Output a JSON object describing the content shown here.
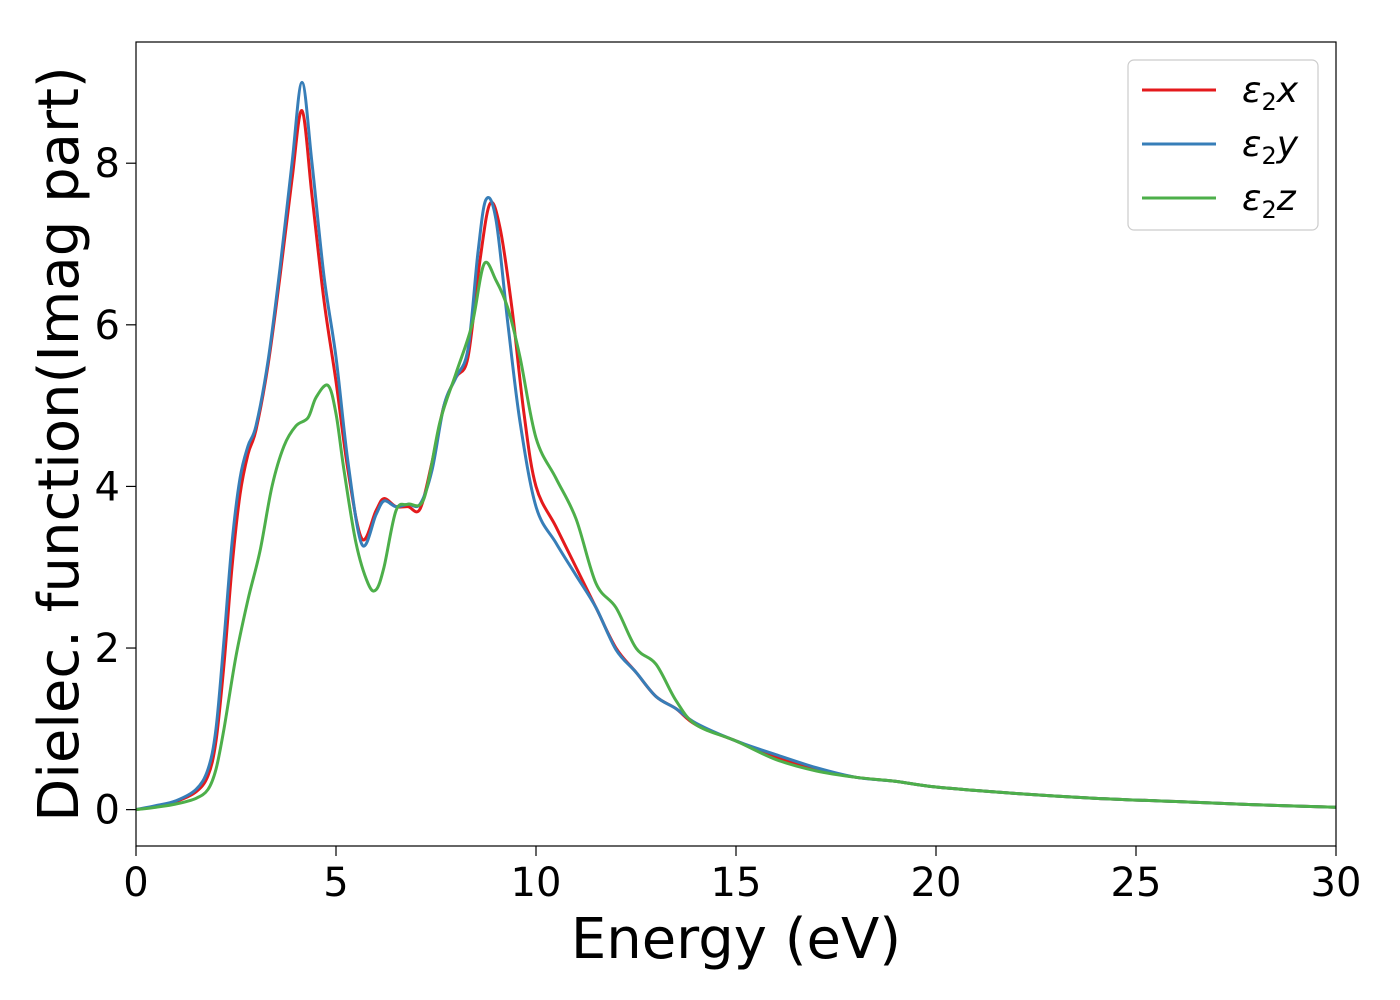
{
  "chart_data": {
    "type": "line",
    "xlabel": "Energy (eV)",
    "ylabel": "Dielec. function(Imag part)",
    "xlim": [
      0,
      30
    ],
    "ylim": [
      -0.45,
      9.5
    ],
    "xticks": [
      0,
      5,
      10,
      15,
      20,
      25,
      30
    ],
    "yticks": [
      0,
      2,
      4,
      6,
      8
    ],
    "xtick_labels": [
      "0",
      "5",
      "10",
      "15",
      "20",
      "25",
      "30"
    ],
    "ytick_labels": [
      "0",
      "2",
      "4",
      "6",
      "8"
    ],
    "grid": false,
    "legend_position": "top-right",
    "series": [
      {
        "name_prefix": "ε",
        "name_sub": "2",
        "name_suffix": "x",
        "color": "#e41a1c",
        "x": [
          0,
          0.5,
          1.0,
          1.5,
          1.8,
          2.0,
          2.2,
          2.4,
          2.6,
          2.8,
          3.0,
          3.3,
          3.6,
          3.9,
          4.15,
          4.4,
          4.7,
          5.0,
          5.3,
          5.65,
          6.0,
          6.2,
          6.5,
          6.8,
          7.1,
          7.4,
          7.7,
          8.0,
          8.3,
          8.6,
          8.85,
          9.1,
          9.4,
          9.7,
          10.0,
          10.5,
          11.0,
          11.5,
          12.0,
          12.5,
          13.0,
          13.5,
          14.0,
          15.0,
          16.0,
          17.0,
          18.0,
          19.0,
          20.0,
          22.0,
          24.0,
          26.0,
          28.0,
          30.0
        ],
        "values": [
          0.0,
          0.04,
          0.1,
          0.22,
          0.42,
          0.85,
          1.8,
          3.0,
          3.9,
          4.4,
          4.7,
          5.5,
          6.6,
          7.8,
          8.65,
          7.6,
          6.3,
          5.3,
          4.2,
          3.35,
          3.7,
          3.85,
          3.75,
          3.75,
          3.72,
          4.3,
          5.0,
          5.35,
          5.6,
          6.8,
          7.5,
          7.2,
          6.2,
          4.9,
          4.0,
          3.5,
          3.0,
          2.5,
          2.0,
          1.7,
          1.4,
          1.25,
          1.05,
          0.85,
          0.65,
          0.5,
          0.4,
          0.35,
          0.28,
          0.2,
          0.14,
          0.1,
          0.06,
          0.03
        ]
      },
      {
        "name_prefix": "ε",
        "name_sub": "2",
        "name_suffix": "y",
        "color": "#377eb8",
        "x": [
          0,
          0.5,
          1.0,
          1.5,
          1.8,
          2.0,
          2.2,
          2.4,
          2.6,
          2.8,
          3.0,
          3.3,
          3.6,
          3.9,
          4.15,
          4.4,
          4.7,
          5.0,
          5.3,
          5.65,
          6.0,
          6.2,
          6.5,
          6.8,
          7.1,
          7.4,
          7.7,
          8.0,
          8.3,
          8.55,
          8.75,
          9.0,
          9.3,
          9.6,
          10.0,
          10.5,
          11.0,
          11.5,
          12.0,
          12.5,
          13.0,
          13.5,
          14.0,
          15.0,
          16.0,
          17.0,
          18.0,
          19.0,
          20.0,
          22.0,
          24.0,
          26.0,
          28.0,
          30.0
        ],
        "values": [
          0.0,
          0.05,
          0.11,
          0.25,
          0.5,
          1.0,
          2.1,
          3.3,
          4.1,
          4.5,
          4.75,
          5.55,
          6.7,
          8.0,
          9.0,
          8.0,
          6.6,
          5.6,
          4.3,
          3.28,
          3.65,
          3.82,
          3.75,
          3.78,
          3.78,
          4.2,
          5.0,
          5.35,
          5.7,
          6.9,
          7.55,
          7.3,
          6.0,
          4.8,
          3.75,
          3.3,
          2.9,
          2.5,
          1.98,
          1.7,
          1.4,
          1.25,
          1.07,
          0.85,
          0.68,
          0.52,
          0.4,
          0.35,
          0.28,
          0.2,
          0.14,
          0.1,
          0.06,
          0.03
        ]
      },
      {
        "name_prefix": "ε",
        "name_sub": "2",
        "name_suffix": "z",
        "color": "#4daf4a",
        "x": [
          0,
          0.5,
          1.0,
          1.5,
          1.8,
          2.0,
          2.2,
          2.5,
          2.8,
          3.1,
          3.4,
          3.7,
          4.0,
          4.3,
          4.5,
          4.8,
          5.0,
          5.2,
          5.5,
          5.8,
          6.0,
          6.2,
          6.5,
          6.8,
          7.2,
          7.6,
          8.0,
          8.4,
          8.7,
          9.0,
          9.3,
          9.6,
          10.0,
          10.5,
          11.0,
          11.5,
          12.0,
          12.5,
          13.0,
          13.5,
          14.0,
          15.0,
          16.0,
          17.0,
          18.0,
          19.0,
          20.0,
          22.0,
          24.0,
          26.0,
          28.0,
          30.0
        ],
        "values": [
          0.0,
          0.03,
          0.07,
          0.14,
          0.25,
          0.5,
          1.0,
          1.9,
          2.6,
          3.2,
          4.0,
          4.5,
          4.75,
          4.85,
          5.1,
          5.25,
          4.9,
          4.2,
          3.3,
          2.8,
          2.72,
          3.0,
          3.7,
          3.78,
          3.85,
          4.8,
          5.4,
          6.0,
          6.75,
          6.55,
          6.2,
          5.6,
          4.6,
          4.1,
          3.6,
          2.8,
          2.5,
          2.0,
          1.8,
          1.35,
          1.05,
          0.85,
          0.62,
          0.48,
          0.4,
          0.35,
          0.28,
          0.2,
          0.14,
          0.1,
          0.06,
          0.03
        ]
      }
    ]
  }
}
